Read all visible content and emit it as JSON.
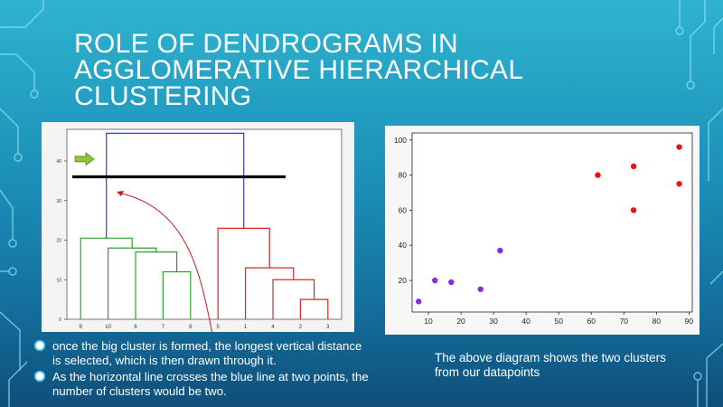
{
  "slide": {
    "title": "ROLE OF DENDROGRAMS IN AGGLOMERATIVE HIERARCHICAL CLUSTERING",
    "bullets": [
      "once the big cluster is formed, the longest vertical distance is selected, which is then drawn through it.",
      "As the horizontal line crosses the blue line at two points, the number of clusters would be two."
    ],
    "caption": "The above diagram shows the two clusters from our datapoints",
    "colors": {
      "background": "#1b8fb8",
      "text": "#ffffff",
      "cluster_green": "#2ca02c",
      "cluster_red": "#d62728",
      "link_blue": "#1f3fff",
      "arrow_green": "#8dc63f",
      "points_red": "#ee1111",
      "points_purple": "#8a2be2"
    }
  },
  "chart_data": [
    {
      "type": "dendrogram",
      "leaf_labels": [
        "9",
        "10",
        "6",
        "7",
        "8",
        "5",
        "1",
        "4",
        "2",
        "3"
      ],
      "y_ticks": [
        "0",
        "10",
        "20",
        "30",
        "40"
      ],
      "ylim": [
        0,
        48
      ],
      "links": [
        {
          "left": "7",
          "right": "8",
          "height": 12,
          "color": "green"
        },
        {
          "left": "6",
          "right": "(7,8)",
          "height": 17,
          "color": "green"
        },
        {
          "left": "10",
          "right": "(6,7,8)",
          "height": 18,
          "color": "green"
        },
        {
          "left": "9",
          "right": "(10,6,7,8)",
          "height": 20.5,
          "color": "green"
        },
        {
          "left": "2",
          "right": "3",
          "height": 5,
          "color": "red"
        },
        {
          "left": "4",
          "right": "(2,3)",
          "height": 10,
          "color": "red"
        },
        {
          "left": "1",
          "right": "(4,2,3)",
          "height": 13,
          "color": "red"
        },
        {
          "left": "5",
          "right": "(1,4,2,3)",
          "height": 23,
          "color": "red"
        },
        {
          "left": "green cluster",
          "right": "red cluster",
          "height": 47,
          "color": "blue"
        }
      ],
      "cut_line_height": 36
    },
    {
      "type": "scatter",
      "xlim": [
        5,
        91
      ],
      "ylim": [
        2,
        104
      ],
      "x_ticks": [
        10,
        20,
        30,
        40,
        50,
        60,
        70,
        80,
        90
      ],
      "y_ticks": [
        20,
        40,
        60,
        80,
        100
      ],
      "series": [
        {
          "color": "#ee1111",
          "points": [
            [
              62,
              80
            ],
            [
              73,
              85
            ],
            [
              87,
              96
            ],
            [
              87,
              75
            ],
            [
              73,
              60
            ]
          ]
        },
        {
          "color": "#8a2be2",
          "points": [
            [
              7,
              8
            ],
            [
              12,
              20
            ],
            [
              17,
              19
            ],
            [
              26,
              15
            ],
            [
              32,
              37
            ]
          ]
        }
      ]
    }
  ]
}
